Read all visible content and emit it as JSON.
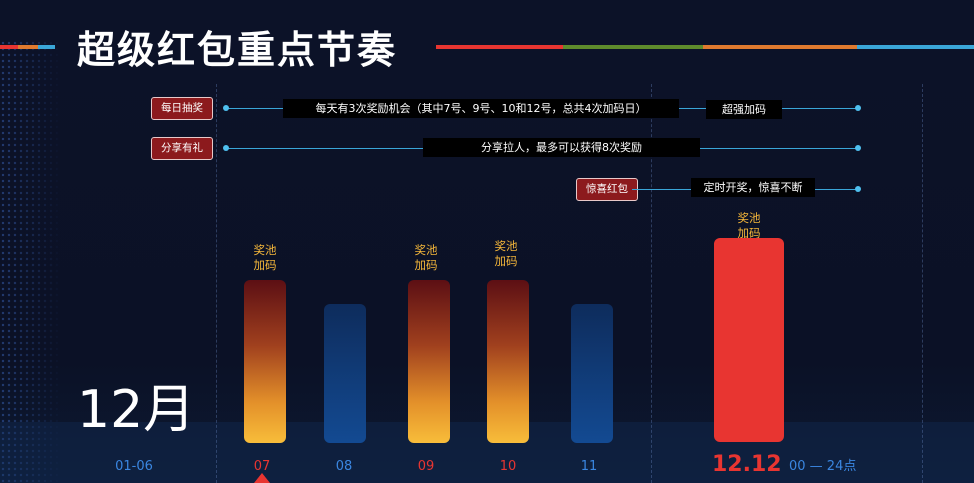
{
  "title": "超级红包重点节奏",
  "month": "12月",
  "colors": {
    "accent_red": "#e83531",
    "label_blue": "#3a86e0",
    "pool_orange": "#f5b73a",
    "tag_bg": "#8c1a1d",
    "timeline_line": "#3aa6d8"
  },
  "timeline": [
    {
      "tag": "每日抽奖",
      "note": "每天有3次奖励机会（其中7号、9号、10和12号，总共4次加码日）",
      "extra": "超强加码"
    },
    {
      "tag": "分享有礼",
      "note": "分享拉人，最多可以获得8次奖励"
    },
    {
      "tag": "惊喜红包",
      "note": "定时开奖，惊喜不断"
    }
  ],
  "chart_data": {
    "type": "bar",
    "categories": [
      "07",
      "08",
      "09",
      "10",
      "11",
      "12.12"
    ],
    "annotations": [
      "奖池\n加码",
      "",
      "奖池\n加码",
      "奖池\n加码",
      "",
      "奖池\n加码"
    ],
    "pool_label_top": "奖池",
    "pool_label_bottom": "加码"
  },
  "axis": {
    "labels": [
      "01-06",
      "07",
      "08",
      "09",
      "10",
      "11"
    ],
    "highlight_date": "12.12",
    "hours": "00 — 24点"
  }
}
